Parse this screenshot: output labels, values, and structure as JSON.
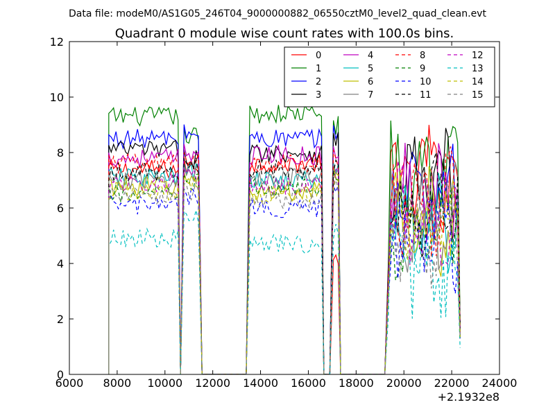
{
  "header": "Data file: modeM0/AS1G05_246T04_9000000882_06550cztM0_level2_quad_clean.evt",
  "chart_data": {
    "type": "line",
    "title": "Quadrant 0 module wise count rates with 100.0s bins.",
    "xlabel": "",
    "ylabel": "",
    "x_offset_label": "+2.1932e8",
    "xlim": [
      6000,
      24000
    ],
    "ylim": [
      0,
      12
    ],
    "x_ticks": [
      "6000",
      "8000",
      "10000",
      "12000",
      "14000",
      "16000",
      "18000",
      "20000",
      "22000",
      "24000"
    ],
    "y_ticks": [
      "0",
      "2",
      "4",
      "6",
      "8",
      "10",
      "12"
    ],
    "grid": false,
    "legend_position": "top-right",
    "segments": [
      {
        "x_start": 7650,
        "x_end": 10550
      },
      {
        "x_start": 10800,
        "x_end": 11450
      },
      {
        "x_start": 13550,
        "x_end": 16550
      },
      {
        "x_start": 17050,
        "x_end": 17250
      },
      {
        "x_start": 19350,
        "x_end": 22250
      }
    ],
    "series": [
      {
        "name": "0",
        "color": "#ff0000",
        "style": "solid",
        "levels": [
          7.4,
          7.5,
          7.6,
          4.0,
          7.2
        ]
      },
      {
        "name": "1",
        "color": "#008000",
        "style": "solid",
        "levels": [
          9.3,
          8.6,
          9.4,
          9.0,
          7.4
        ]
      },
      {
        "name": "2",
        "color": "#0000ff",
        "style": "solid",
        "levels": [
          8.5,
          8.7,
          8.5,
          8.8,
          6.7
        ]
      },
      {
        "name": "3",
        "color": "#000000",
        "style": "solid",
        "levels": [
          8.1,
          7.8,
          8.0,
          8.5,
          6.9
        ]
      },
      {
        "name": "4",
        "color": "#bf00bf",
        "style": "solid",
        "levels": [
          7.8,
          8.0,
          7.9,
          8.0,
          6.5
        ]
      },
      {
        "name": "5",
        "color": "#00bfbf",
        "style": "solid",
        "levels": [
          7.1,
          7.3,
          7.0,
          7.4,
          5.6
        ]
      },
      {
        "name": "6",
        "color": "#bfbf00",
        "style": "solid",
        "levels": [
          6.8,
          7.0,
          6.6,
          7.2,
          5.4
        ]
      },
      {
        "name": "7",
        "color": "#808080",
        "style": "solid",
        "levels": [
          7.0,
          7.2,
          7.1,
          7.3,
          5.6
        ]
      },
      {
        "name": "8",
        "color": "#ff0000",
        "style": "dashed",
        "levels": [
          7.6,
          7.7,
          7.6,
          7.8,
          6.1
        ]
      },
      {
        "name": "9",
        "color": "#008000",
        "style": "dashed",
        "levels": [
          6.5,
          6.9,
          6.7,
          7.0,
          5.3
        ]
      },
      {
        "name": "10",
        "color": "#0000ff",
        "style": "dashed",
        "levels": [
          6.1,
          6.4,
          6.0,
          6.5,
          5.0
        ]
      },
      {
        "name": "11",
        "color": "#000000",
        "style": "dashed",
        "levels": [
          7.3,
          7.5,
          7.4,
          7.6,
          6.0
        ]
      },
      {
        "name": "12",
        "color": "#bf00bf",
        "style": "dashed",
        "levels": [
          6.9,
          7.1,
          6.8,
          7.2,
          5.7
        ]
      },
      {
        "name": "13",
        "color": "#00bfbf",
        "style": "dashed",
        "levels": [
          4.9,
          5.6,
          4.7,
          5.2,
          3.8
        ]
      },
      {
        "name": "14",
        "color": "#bfbf00",
        "style": "dashed",
        "levels": [
          6.6,
          6.8,
          6.5,
          7.0,
          5.4
        ]
      },
      {
        "name": "15",
        "color": "#808080",
        "style": "dashed",
        "levels": [
          6.4,
          6.6,
          6.3,
          6.8,
          5.2
        ]
      }
    ]
  }
}
